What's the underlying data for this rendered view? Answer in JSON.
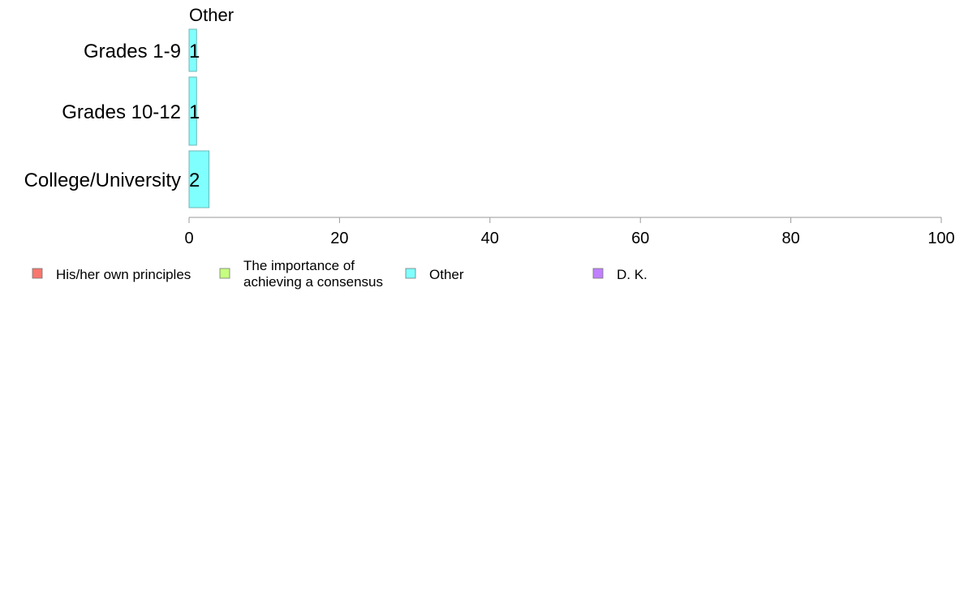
{
  "chart_data": {
    "type": "bar",
    "orientation": "horizontal",
    "panel_title": "Other",
    "categories": [
      "Grades 1-9",
      "Grades 10-12",
      "College/University"
    ],
    "series": [
      {
        "name": "Other",
        "values": [
          1,
          1,
          2
        ],
        "labels": [
          "1",
          "1",
          "2"
        ],
        "color": "#80ffff"
      }
    ],
    "xlim": [
      0,
      100
    ],
    "xticks": [
      0,
      20,
      40,
      60,
      80,
      100
    ],
    "xtick_labels": [
      "0",
      "20",
      "40",
      "60",
      "80",
      "100"
    ],
    "xlabel": "",
    "ylabel": "",
    "grid": false,
    "legend": {
      "position": "bottom",
      "entries": [
        {
          "lines": [
            "His/her own principles"
          ],
          "color": "#f8766d"
        },
        {
          "lines": [
            "The importance of",
            "achieving a consensus"
          ],
          "color": "#c6ff80"
        },
        {
          "lines": [
            "Other"
          ],
          "color": "#80ffff"
        },
        {
          "lines": [
            "D. K."
          ],
          "color": "#c080ff"
        }
      ]
    }
  }
}
